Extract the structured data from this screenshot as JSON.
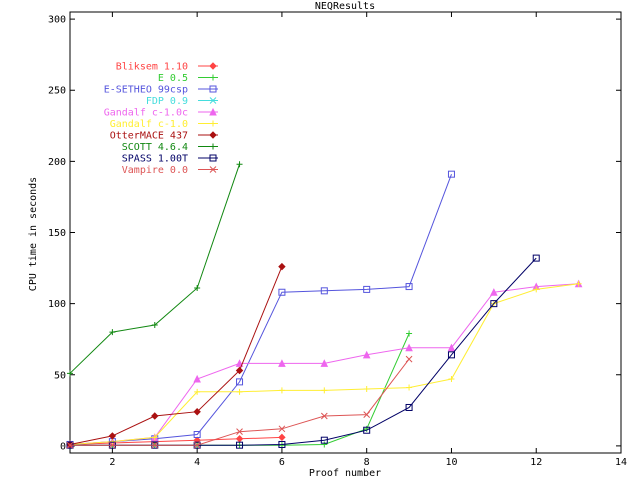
{
  "chart_data": {
    "type": "line",
    "title": "NEQResults",
    "xlabel": "Proof number",
    "ylabel": "CPU time in seconds",
    "xlim": [
      1,
      14
    ],
    "ylim": [
      -5,
      305
    ],
    "xticks": [
      2,
      4,
      6,
      8,
      10,
      12,
      14
    ],
    "yticks": [
      0,
      50,
      100,
      150,
      200,
      250,
      300
    ],
    "grid": false,
    "legend_position": "top-left",
    "series": [
      {
        "name": "Bliksem 1.10",
        "color": "#ff4444",
        "marker": "diamond",
        "x": [
          1,
          2,
          3,
          4,
          5,
          6
        ],
        "y": [
          1,
          2,
          3,
          4,
          5,
          6
        ]
      },
      {
        "name": "E 0.5",
        "color": "#33cc33",
        "marker": "plus",
        "x": [
          1,
          2,
          3,
          4,
          5,
          6,
          7,
          8,
          9
        ],
        "y": [
          0.5,
          0.5,
          0.5,
          0.5,
          0.5,
          0.5,
          1,
          12,
          79
        ]
      },
      {
        "name": "E-SETHEO 99csp",
        "color": "#5555dd",
        "marker": "square",
        "x": [
          1,
          2,
          3,
          4,
          5,
          6,
          7,
          8,
          9,
          10
        ],
        "y": [
          1,
          3,
          5,
          8,
          45,
          108,
          109,
          110,
          112,
          191
        ]
      },
      {
        "name": "FDP 0.9",
        "color": "#44dddd",
        "marker": "x",
        "x": [
          1,
          2,
          3,
          4
        ],
        "y": [
          0.5,
          0.5,
          0.5,
          0.5
        ]
      },
      {
        "name": "Gandalf c-1.0c",
        "color": "#ee66ee",
        "marker": "triangle",
        "x": [
          1,
          2,
          3,
          4,
          5,
          6,
          7,
          8,
          9,
          10,
          11,
          12,
          13
        ],
        "y": [
          1,
          3,
          6,
          47,
          58,
          58,
          58,
          64,
          69,
          69,
          108,
          112,
          114
        ]
      },
      {
        "name": "Gandalf c-1.0",
        "color": "#ffee33",
        "marker": "plus",
        "x": [
          1,
          2,
          3,
          4,
          5,
          6,
          7,
          8,
          9,
          10,
          11,
          12,
          13
        ],
        "y": [
          1,
          3,
          6,
          38,
          38,
          39,
          39,
          40,
          41,
          47,
          100,
          110,
          114
        ]
      },
      {
        "name": "OtterMACE 437",
        "color": "#aa1111",
        "marker": "diamond",
        "x": [
          1,
          2,
          3,
          4,
          5,
          6
        ],
        "y": [
          1,
          7,
          21,
          24,
          53,
          126
        ]
      },
      {
        "name": "SCOTT 4.6.4",
        "color": "#118811",
        "marker": "plus",
        "x": [
          1,
          2,
          3,
          4,
          5
        ],
        "y": [
          51,
          80,
          85,
          111,
          198
        ]
      },
      {
        "name": "SPASS 1.00T",
        "color": "#000066",
        "marker": "square",
        "x": [
          1,
          2,
          3,
          4,
          5,
          6,
          7,
          8,
          9,
          10,
          11,
          12
        ],
        "y": [
          0.5,
          0.5,
          0.5,
          0.5,
          0.5,
          1,
          4,
          11,
          27,
          64,
          100,
          132
        ]
      },
      {
        "name": "Vampire 0.0",
        "color": "#dd5555",
        "marker": "x",
        "x": [
          1,
          2,
          3,
          4,
          5,
          6,
          7,
          8,
          9
        ],
        "y": [
          0.5,
          0.5,
          0.5,
          0.5,
          10,
          12,
          21,
          22,
          61
        ]
      }
    ]
  }
}
